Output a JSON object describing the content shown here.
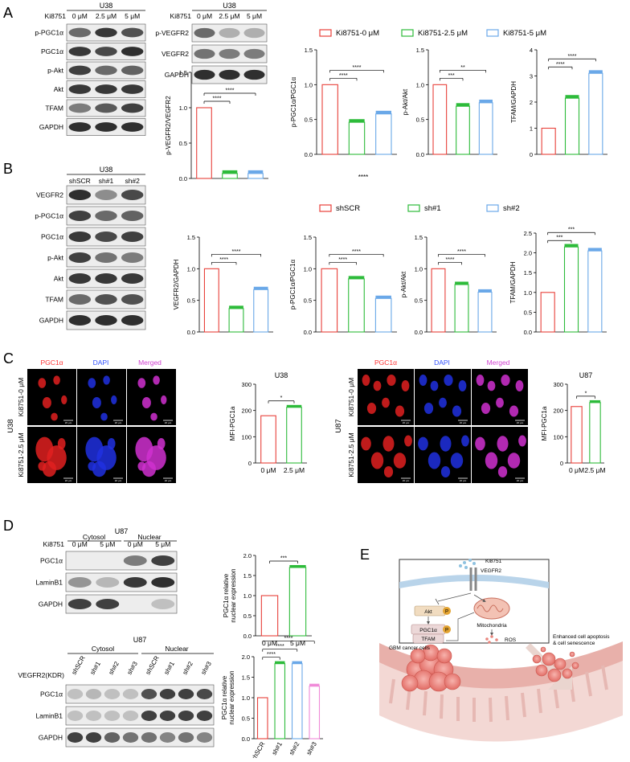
{
  "panels": {
    "A": "A",
    "B": "B",
    "C": "C",
    "D": "D",
    "E": "E"
  },
  "blot_A1": {
    "title": "U38",
    "treatment_label": "Ki8751",
    "columns": [
      "0 μM",
      "2.5 μM",
      "5 μM"
    ],
    "rows": [
      "p-PGC1α",
      "PGC1α",
      "p-Akt",
      "Akt",
      "TFAM",
      "GAPDH"
    ]
  },
  "blot_A2": {
    "title": "U38",
    "treatment_label": "Ki8751",
    "columns": [
      "0 μM",
      "2.5 μM",
      "5 μM"
    ],
    "rows": [
      "p-VEGFR2",
      "VEGFR2",
      "GAPDH"
    ]
  },
  "legend_A": [
    "Ki8751-0 μM",
    "Ki8751-2.5 μM",
    "Ki8751-5 μM"
  ],
  "legend_B": [
    "shSCR",
    "sh#1",
    "sh#2"
  ],
  "stray_A": "****",
  "colors": {
    "red": "#e8403a",
    "green": "#2dbb3a",
    "blue": "#6aa8e8",
    "pink": "#f08ad8"
  },
  "blot_B": {
    "title": "U38",
    "columns": [
      "shSCR",
      "sh#1",
      "sh#2"
    ],
    "rows": [
      "VEGFR2",
      "p-PGC1α",
      "PGC1α",
      "p-Akt",
      "Akt",
      "TFAM",
      "GAPDH"
    ]
  },
  "chart_data": [
    {
      "id": "A-pVEGFR2",
      "type": "bar",
      "ylabel": "p-VEGFR2/VEGFR2",
      "ylim": [
        0,
        1.5
      ],
      "yticks": [
        "0.0",
        "0.5",
        "1.0",
        "1.5"
      ],
      "series": [
        {
          "values": [
            1.0,
            0.07,
            0.07
          ]
        }
      ],
      "sig": [
        {
          "label": "****",
          "span": [
            0,
            1
          ]
        },
        {
          "label": "****",
          "span": [
            0,
            2
          ]
        }
      ]
    },
    {
      "id": "A-pPGC1a",
      "type": "bar",
      "ylabel": "p-PGC1α/PGC1α",
      "ylim": [
        0,
        1.5
      ],
      "yticks": [
        "0.0",
        "0.5",
        "1.0",
        "1.5"
      ],
      "series": [
        {
          "values": [
            1.0,
            0.46,
            0.58
          ]
        }
      ],
      "sig": [
        {
          "label": "****",
          "span": [
            0,
            1
          ]
        },
        {
          "label": "****",
          "span": [
            0,
            2
          ]
        }
      ]
    },
    {
      "id": "A-pAkt",
      "type": "bar",
      "ylabel": "p-Akt/Akt",
      "ylim": [
        0,
        1.5
      ],
      "yticks": [
        "0.0",
        "0.5",
        "1.0",
        "1.5"
      ],
      "series": [
        {
          "values": [
            1.0,
            0.69,
            0.74
          ]
        }
      ],
      "sig": [
        {
          "label": "***",
          "span": [
            0,
            1
          ]
        },
        {
          "label": "**",
          "span": [
            0,
            2
          ]
        }
      ]
    },
    {
      "id": "A-TFAM",
      "type": "bar",
      "ylabel": "TFAM/GAPDH",
      "ylim": [
        0,
        4
      ],
      "yticks": [
        "0",
        "1",
        "2",
        "3",
        "4"
      ],
      "series": [
        {
          "values": [
            1.0,
            2.15,
            3.1
          ]
        }
      ],
      "sig": [
        {
          "label": "****",
          "span": [
            0,
            1
          ]
        },
        {
          "label": "****",
          "span": [
            0,
            2
          ]
        }
      ]
    },
    {
      "id": "B-VEGFR2",
      "type": "bar",
      "ylabel": "VEGFR2/GAPDH",
      "ylim": [
        0,
        1.5
      ],
      "yticks": [
        "0.0",
        "0.5",
        "1.0",
        "1.5"
      ],
      "series": [
        {
          "values": [
            1.0,
            0.37,
            0.67
          ]
        }
      ],
      "sig": [
        {
          "label": "****",
          "span": [
            0,
            1
          ]
        },
        {
          "label": "****",
          "span": [
            0,
            2
          ]
        }
      ]
    },
    {
      "id": "B-pPGC1a",
      "type": "bar",
      "ylabel": "p-PGC1α/PGC1α",
      "ylim": [
        0,
        1.5
      ],
      "yticks": [
        "0.0",
        "0.5",
        "1.0",
        "1.5"
      ],
      "series": [
        {
          "values": [
            1.0,
            0.84,
            0.53
          ]
        }
      ],
      "sig": [
        {
          "label": "****",
          "span": [
            0,
            1
          ]
        },
        {
          "label": "****",
          "span": [
            0,
            2
          ]
        }
      ]
    },
    {
      "id": "B-pAkt",
      "type": "bar",
      "ylabel": "p-Akt/Akt",
      "ylim": [
        0,
        1.5
      ],
      "yticks": [
        "0.0",
        "0.5",
        "1.0",
        "1.5"
      ],
      "series": [
        {
          "values": [
            1.0,
            0.75,
            0.63
          ]
        }
      ],
      "sig": [
        {
          "label": "****",
          "span": [
            0,
            1
          ]
        },
        {
          "label": "****",
          "span": [
            0,
            2
          ]
        }
      ]
    },
    {
      "id": "B-TFAM",
      "type": "bar",
      "ylabel": "TFAM/GAPDH",
      "ylim": [
        0,
        2.5
      ],
      "yticks": [
        "0.0",
        "0.5",
        "1.0",
        "1.5",
        "2.0",
        "2.5"
      ],
      "series": [
        {
          "values": [
            1.0,
            2.15,
            2.05
          ]
        }
      ],
      "sig": [
        {
          "label": "***",
          "span": [
            0,
            1
          ]
        },
        {
          "label": "***",
          "span": [
            0,
            2
          ]
        }
      ]
    },
    {
      "id": "C-U38",
      "type": "bar",
      "title": "U38",
      "ylabel": "MFI-PGC1a",
      "ylim": [
        0,
        300
      ],
      "yticks": [
        "0",
        "100",
        "200",
        "300"
      ],
      "categories": [
        "0 μM",
        "2.5 μM"
      ],
      "series": [
        {
          "values": [
            180,
            212
          ]
        }
      ],
      "sig": [
        {
          "label": "*",
          "span": [
            0,
            1
          ]
        }
      ]
    },
    {
      "id": "C-U87",
      "type": "bar",
      "title": "U87",
      "ylabel": "MFI-PGC1a",
      "ylim": [
        0,
        300
      ],
      "yticks": [
        "0",
        "100",
        "200",
        "300"
      ],
      "categories": [
        "0 μM",
        "2.5 μM"
      ],
      "series": [
        {
          "values": [
            215,
            230
          ]
        }
      ],
      "sig": [
        {
          "label": "*",
          "span": [
            0,
            1
          ]
        }
      ]
    },
    {
      "id": "D-top",
      "type": "bar",
      "ylabel": "PGC1α relative\nnuclear expression",
      "ylim": [
        0,
        2.0
      ],
      "yticks": [
        "0.0",
        "0.5",
        "1.0",
        "1.5",
        "2.0"
      ],
      "categories": [
        "0 μM",
        "5 μM"
      ],
      "series": [
        {
          "values": [
            1.0,
            1.7
          ]
        }
      ],
      "sig": [
        {
          "label": "***",
          "span": [
            0,
            1
          ]
        }
      ]
    },
    {
      "id": "D-bottom",
      "type": "bar",
      "ylabel": "PGC1α relative\nnuclear expression",
      "ylim": [
        0,
        2.0
      ],
      "yticks": [
        "0.0",
        "0.5",
        "1.0",
        "1.5",
        "2.0"
      ],
      "categories": [
        "shSCR",
        "sh#1",
        "sh#2",
        "sh#3"
      ],
      "series": [
        {
          "values": [
            1.0,
            1.83,
            1.83,
            1.28
          ]
        }
      ],
      "sig": [
        {
          "label": "****",
          "span": [
            0,
            1
          ]
        },
        {
          "label": "****",
          "span": [
            0,
            2
          ]
        },
        {
          "label": "****",
          "span": [
            0,
            3
          ]
        }
      ]
    }
  ],
  "panel_C": {
    "side_label_left": "U38",
    "side_label_right": "U87",
    "channels": [
      "PGC1α",
      "DAPI",
      "Merged"
    ],
    "rows": [
      "Ki8751-0 μM",
      "Ki8751-2.5 μM"
    ],
    "scalebar": "20 μm"
  },
  "blot_D1": {
    "title": "U87",
    "treatment_label": "Ki8751",
    "groups": [
      "Cytosol",
      "Nuclear"
    ],
    "columns": [
      "0 μM",
      "5 μM",
      "0 μM",
      "5 μM"
    ],
    "rows": [
      "PGC1α",
      "LaminB1",
      "GAPDH"
    ]
  },
  "blot_D2": {
    "title": "U87",
    "treatment_label": "VEGFR2(KDR)",
    "groups": [
      "Cytosol",
      "Nuclear"
    ],
    "columns": [
      "shSCR",
      "sh#1",
      "sh#2",
      "sh#3",
      "shSCR",
      "sh#1",
      "sh#2",
      "sh#3"
    ],
    "rows": [
      "PGC1α",
      "LaminB1",
      "GAPDH"
    ]
  },
  "panel_E": {
    "drug": "Ki8751",
    "receptor": "VEGFR2",
    "akt": "Akt",
    "pgc1a": "PGC1α",
    "tfam": "TFAM",
    "p": "P",
    "mito": "Mitochondria",
    "ros": "ROS",
    "gbm": "GBM cancer cells",
    "outcome": "Enhanced cell apoptosis\n& cell senescence"
  }
}
